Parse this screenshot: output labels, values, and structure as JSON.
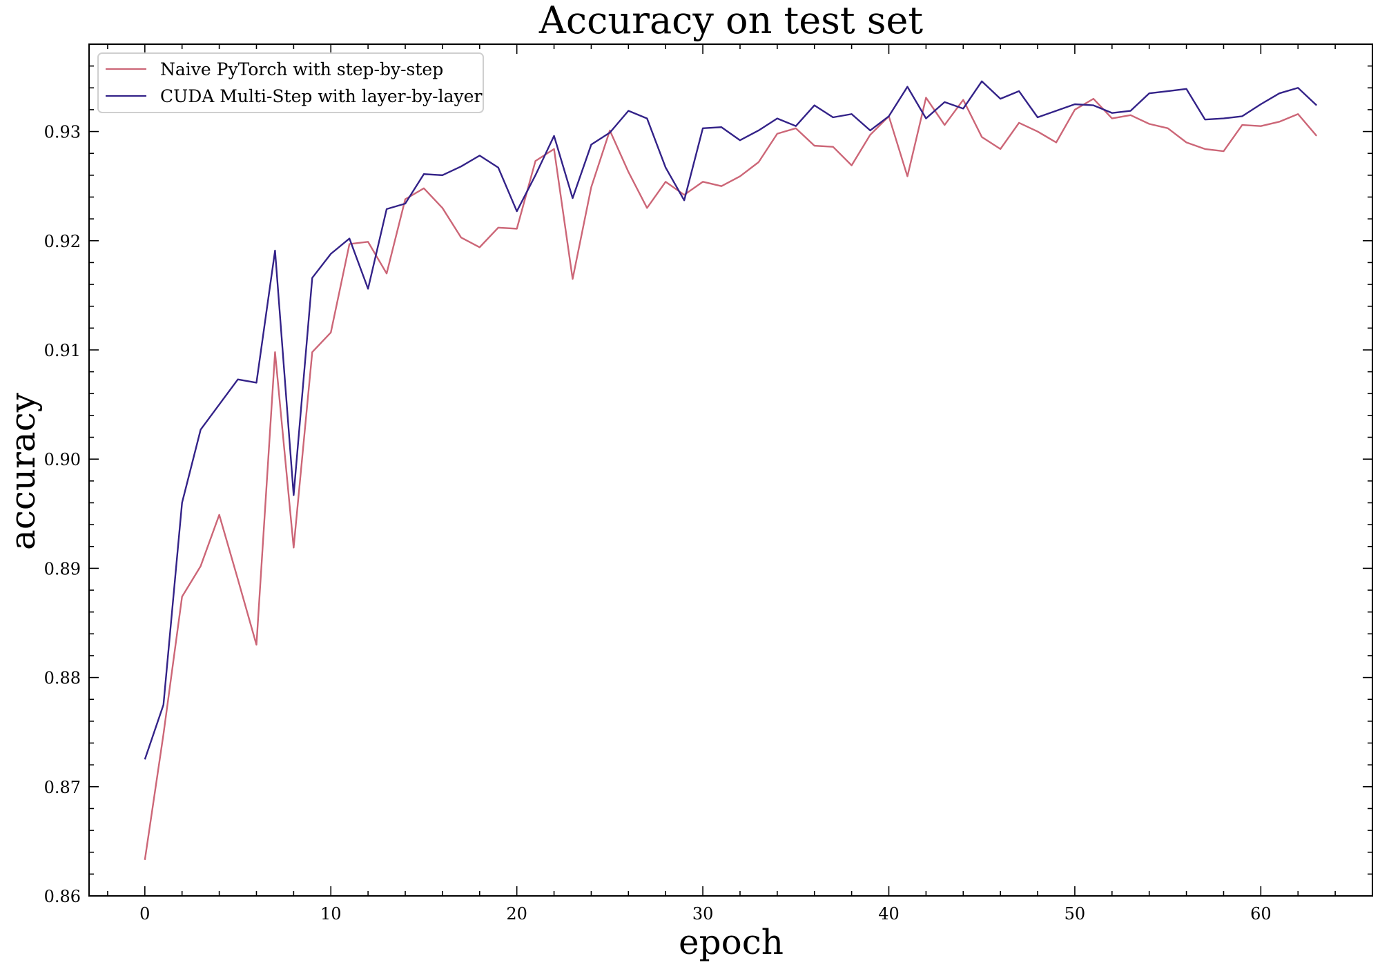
{
  "chart_data": {
    "type": "line",
    "title": "Accuracy on test set",
    "xlabel": "epoch",
    "ylabel": "accuracy",
    "xlim": [
      -3,
      66
    ],
    "ylim": [
      0.86,
      0.938
    ],
    "x_ticks": [
      0,
      10,
      20,
      30,
      40,
      50,
      60
    ],
    "y_ticks": [
      0.86,
      0.87,
      0.88,
      0.89,
      0.9,
      0.91,
      0.92,
      0.93
    ],
    "x_tick_labels": [
      "0",
      "10",
      "20",
      "30",
      "40",
      "50",
      "60"
    ],
    "y_tick_labels": [
      "0.86",
      "0.87",
      "0.88",
      "0.89",
      "0.90",
      "0.91",
      "0.92",
      "0.93"
    ],
    "grid": false,
    "legend_position": "top-left",
    "x": [
      0,
      1,
      2,
      3,
      4,
      5,
      6,
      7,
      8,
      9,
      10,
      11,
      12,
      13,
      14,
      15,
      16,
      17,
      18,
      19,
      20,
      21,
      22,
      23,
      24,
      25,
      26,
      27,
      28,
      29,
      30,
      31,
      32,
      33,
      34,
      35,
      36,
      37,
      38,
      39,
      40,
      41,
      42,
      43,
      44,
      45,
      46,
      47,
      48,
      49,
      50,
      51,
      52,
      53,
      54,
      55,
      56,
      57,
      58,
      59,
      60,
      61,
      62,
      63
    ],
    "series": [
      {
        "name": "Naive PyTorch with step-by-step",
        "color": "#cc6677",
        "values": [
          0.8633,
          0.8748,
          0.8874,
          0.8902,
          0.8949,
          0.889,
          0.883,
          0.9098,
          0.8919,
          0.9098,
          0.9116,
          0.9197,
          0.9199,
          0.917,
          0.9238,
          0.9248,
          0.923,
          0.9203,
          0.9194,
          0.9212,
          0.9211,
          0.9273,
          0.9284,
          0.9165,
          0.9249,
          0.9301,
          0.9263,
          0.923,
          0.9254,
          0.9242,
          0.9254,
          0.925,
          0.9259,
          0.9272,
          0.9298,
          0.9303,
          0.9287,
          0.9286,
          0.9269,
          0.9297,
          0.9314,
          0.9259,
          0.9331,
          0.9306,
          0.9329,
          0.9295,
          0.9284,
          0.9308,
          0.93,
          0.929,
          0.932,
          0.933,
          0.9312,
          0.9315,
          0.9307,
          0.9303,
          0.929,
          0.9284,
          0.9282,
          0.9306,
          0.9305,
          0.9309,
          0.9316,
          0.9296
        ]
      },
      {
        "name": "CUDA Multi-Step with layer-by-layer",
        "color": "#332288",
        "values": [
          0.8725,
          0.8775,
          0.896,
          0.9027,
          0.905,
          0.9073,
          0.907,
          0.9191,
          0.8967,
          0.9166,
          0.9188,
          0.9202,
          0.9156,
          0.9229,
          0.9234,
          0.9261,
          0.926,
          0.9268,
          0.9278,
          0.9267,
          0.9227,
          0.926,
          0.9296,
          0.9239,
          0.9288,
          0.9299,
          0.9319,
          0.9312,
          0.9267,
          0.9237,
          0.9303,
          0.9304,
          0.9292,
          0.9301,
          0.9312,
          0.9305,
          0.9324,
          0.9313,
          0.9316,
          0.9301,
          0.9314,
          0.9341,
          0.9312,
          0.9327,
          0.9321,
          0.9346,
          0.933,
          0.9337,
          0.9313,
          0.9319,
          0.9325,
          0.9324,
          0.9317,
          0.9319,
          0.9335,
          0.9337,
          0.9339,
          0.9311,
          0.9312,
          0.9314,
          0.9325,
          0.9335,
          0.934,
          0.9324
        ]
      }
    ]
  }
}
